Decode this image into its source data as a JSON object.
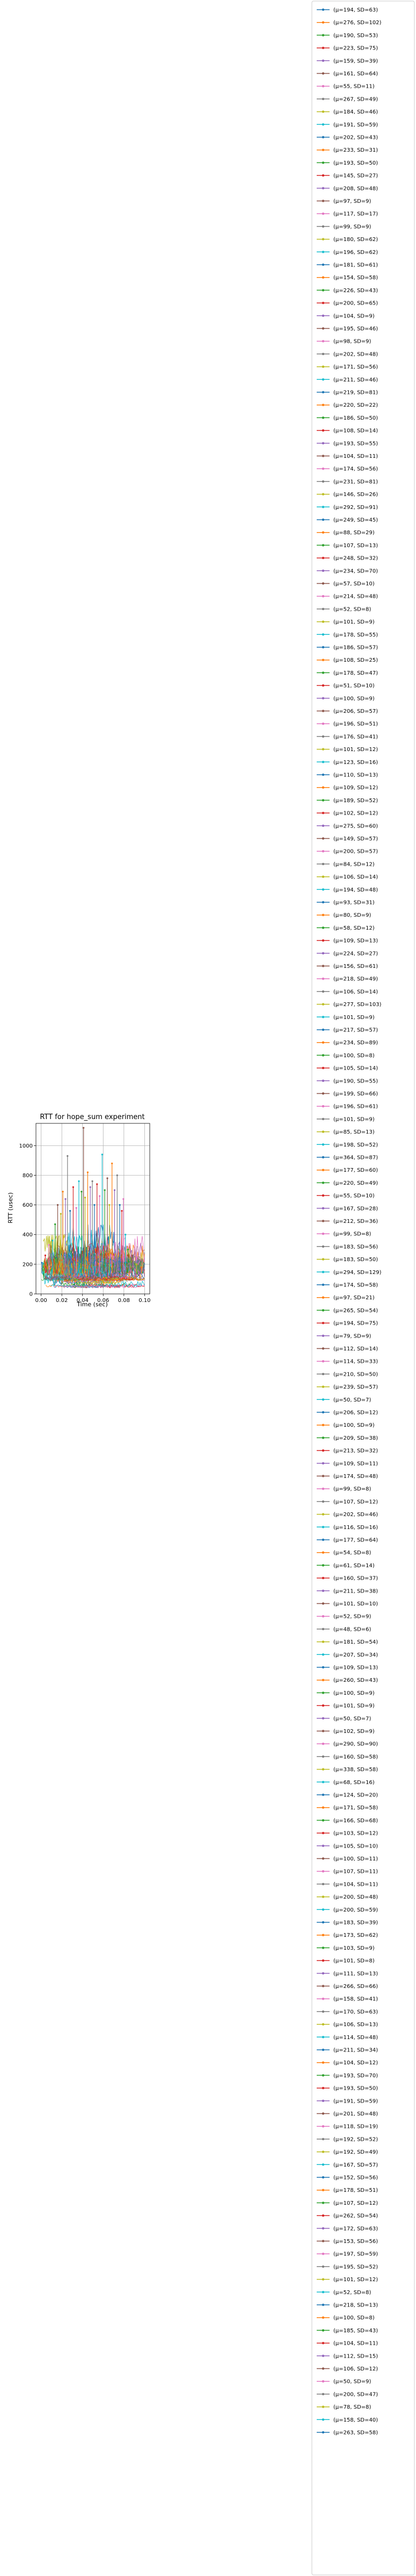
{
  "chart_data": {
    "type": "line",
    "title": "RTT for hope_sum experiment",
    "xlabel": "Time (sec)",
    "ylabel": "RTT (usec)",
    "xlim": [
      -0.005,
      0.105
    ],
    "ylim": [
      0,
      1150
    ],
    "xticks": [
      "0.00",
      "0.02",
      "0.04",
      "0.06",
      "0.08",
      "0.10"
    ],
    "yticks": [
      "0",
      "200",
      "400",
      "600",
      "800",
      "1000"
    ],
    "grid": true,
    "legend_position": "right, outside plot",
    "colors": [
      "#1f77b4",
      "#ff7f0e",
      "#2ca02c",
      "#d62728",
      "#9467bd",
      "#8c564b",
      "#e377c2",
      "#7f7f7f",
      "#bcbd22",
      "#17becf"
    ],
    "series": [
      {
        "name": "(μ=194, SD=63)"
      },
      {
        "name": "(μ=276, SD=102)"
      },
      {
        "name": "(μ=190, SD=53)"
      },
      {
        "name": "(μ=223, SD=75)"
      },
      {
        "name": "(μ=159, SD=39)"
      },
      {
        "name": "(μ=161, SD=64)"
      },
      {
        "name": "(μ=55, SD=11)"
      },
      {
        "name": "(μ=267, SD=49)"
      },
      {
        "name": "(μ=184, SD=46)"
      },
      {
        "name": "(μ=191, SD=59)"
      },
      {
        "name": "(μ=202, SD=43)"
      },
      {
        "name": "(μ=233, SD=31)"
      },
      {
        "name": "(μ=193, SD=50)"
      },
      {
        "name": "(μ=145, SD=27)"
      },
      {
        "name": "(μ=208, SD=48)"
      },
      {
        "name": "(μ=97, SD=9)"
      },
      {
        "name": "(μ=117, SD=17)"
      },
      {
        "name": "(μ=99, SD=9)"
      },
      {
        "name": "(μ=180, SD=62)"
      },
      {
        "name": "(μ=196, SD=62)"
      },
      {
        "name": "(μ=181, SD=61)"
      },
      {
        "name": "(μ=154, SD=58)"
      },
      {
        "name": "(μ=226, SD=43)"
      },
      {
        "name": "(μ=200, SD=65)"
      },
      {
        "name": "(μ=104, SD=9)"
      },
      {
        "name": "(μ=195, SD=46)"
      },
      {
        "name": "(μ=98, SD=9)"
      },
      {
        "name": "(μ=202, SD=48)"
      },
      {
        "name": "(μ=171, SD=56)"
      },
      {
        "name": "(μ=211, SD=46)"
      },
      {
        "name": "(μ=219, SD=81)"
      },
      {
        "name": "(μ=220, SD=22)"
      },
      {
        "name": "(μ=186, SD=50)"
      },
      {
        "name": "(μ=108, SD=14)"
      },
      {
        "name": "(μ=193, SD=55)"
      },
      {
        "name": "(μ=104, SD=11)"
      },
      {
        "name": "(μ=174, SD=56)"
      },
      {
        "name": "(μ=231, SD=81)"
      },
      {
        "name": "(μ=146, SD=26)"
      },
      {
        "name": "(μ=292, SD=91)"
      },
      {
        "name": "(μ=249, SD=45)"
      },
      {
        "name": "(μ=88, SD=29)"
      },
      {
        "name": "(μ=107, SD=13)"
      },
      {
        "name": "(μ=248, SD=32)"
      },
      {
        "name": "(μ=234, SD=70)"
      },
      {
        "name": "(μ=57, SD=10)"
      },
      {
        "name": "(μ=214, SD=48)"
      },
      {
        "name": "(μ=52, SD=8)"
      },
      {
        "name": "(μ=101, SD=9)"
      },
      {
        "name": "(μ=178, SD=55)"
      },
      {
        "name": "(μ=186, SD=57)"
      },
      {
        "name": "(μ=108, SD=25)"
      },
      {
        "name": "(μ=178, SD=47)"
      },
      {
        "name": "(μ=51, SD=10)"
      },
      {
        "name": "(μ=100, SD=9)"
      },
      {
        "name": "(μ=206, SD=57)"
      },
      {
        "name": "(μ=196, SD=51)"
      },
      {
        "name": "(μ=176, SD=41)"
      },
      {
        "name": "(μ=101, SD=12)"
      },
      {
        "name": "(μ=123, SD=16)"
      },
      {
        "name": "(μ=110, SD=13)"
      },
      {
        "name": "(μ=109, SD=12)"
      },
      {
        "name": "(μ=189, SD=52)"
      },
      {
        "name": "(μ=102, SD=12)"
      },
      {
        "name": "(μ=275, SD=60)"
      },
      {
        "name": "(μ=149, SD=57)"
      },
      {
        "name": "(μ=200, SD=57)"
      },
      {
        "name": "(μ=84, SD=12)"
      },
      {
        "name": "(μ=106, SD=14)"
      },
      {
        "name": "(μ=194, SD=48)"
      },
      {
        "name": "(μ=93, SD=31)"
      },
      {
        "name": "(μ=80, SD=9)"
      },
      {
        "name": "(μ=58, SD=12)"
      },
      {
        "name": "(μ=109, SD=13)"
      },
      {
        "name": "(μ=224, SD=27)"
      },
      {
        "name": "(μ=156, SD=61)"
      },
      {
        "name": "(μ=218, SD=49)"
      },
      {
        "name": "(μ=106, SD=14)"
      },
      {
        "name": "(μ=277, SD=103)"
      },
      {
        "name": "(μ=101, SD=9)"
      },
      {
        "name": "(μ=217, SD=57)"
      },
      {
        "name": "(μ=234, SD=89)"
      },
      {
        "name": "(μ=100, SD=8)"
      },
      {
        "name": "(μ=105, SD=14)"
      },
      {
        "name": "(μ=190, SD=55)"
      },
      {
        "name": "(μ=199, SD=66)"
      },
      {
        "name": "(μ=196, SD=61)"
      },
      {
        "name": "(μ=101, SD=9)"
      },
      {
        "name": "(μ=85, SD=13)"
      },
      {
        "name": "(μ=198, SD=52)"
      },
      {
        "name": "(μ=364, SD=87)"
      },
      {
        "name": "(μ=177, SD=60)"
      },
      {
        "name": "(μ=220, SD=49)"
      },
      {
        "name": "(μ=55, SD=10)"
      },
      {
        "name": "(μ=167, SD=28)"
      },
      {
        "name": "(μ=212, SD=36)"
      },
      {
        "name": "(μ=99, SD=8)"
      },
      {
        "name": "(μ=183, SD=56)"
      },
      {
        "name": "(μ=183, SD=50)"
      },
      {
        "name": "(μ=294, SD=129)"
      },
      {
        "name": "(μ=174, SD=58)"
      },
      {
        "name": "(μ=97, SD=21)"
      },
      {
        "name": "(μ=265, SD=54)"
      },
      {
        "name": "(μ=194, SD=75)"
      },
      {
        "name": "(μ=79, SD=9)"
      },
      {
        "name": "(μ=112, SD=14)"
      },
      {
        "name": "(μ=114, SD=33)"
      },
      {
        "name": "(μ=210, SD=50)"
      },
      {
        "name": "(μ=239, SD=57)"
      },
      {
        "name": "(μ=50, SD=7)"
      },
      {
        "name": "(μ=206, SD=12)"
      },
      {
        "name": "(μ=100, SD=9)"
      },
      {
        "name": "(μ=209, SD=38)"
      },
      {
        "name": "(μ=213, SD=32)"
      },
      {
        "name": "(μ=109, SD=11)"
      },
      {
        "name": "(μ=174, SD=48)"
      },
      {
        "name": "(μ=99, SD=8)"
      },
      {
        "name": "(μ=107, SD=12)"
      },
      {
        "name": "(μ=202, SD=46)"
      },
      {
        "name": "(μ=116, SD=16)"
      },
      {
        "name": "(μ=177, SD=64)"
      },
      {
        "name": "(μ=54, SD=8)"
      },
      {
        "name": "(μ=61, SD=14)"
      },
      {
        "name": "(μ=160, SD=37)"
      },
      {
        "name": "(μ=211, SD=38)"
      },
      {
        "name": "(μ=101, SD=10)"
      },
      {
        "name": "(μ=52, SD=9)"
      },
      {
        "name": "(μ=48, SD=6)"
      },
      {
        "name": "(μ=181, SD=54)"
      },
      {
        "name": "(μ=207, SD=34)"
      },
      {
        "name": "(μ=109, SD=13)"
      },
      {
        "name": "(μ=260, SD=43)"
      },
      {
        "name": "(μ=100, SD=9)"
      },
      {
        "name": "(μ=101, SD=9)"
      },
      {
        "name": "(μ=50, SD=7)"
      },
      {
        "name": "(μ=102, SD=9)"
      },
      {
        "name": "(μ=290, SD=90)"
      },
      {
        "name": "(μ=160, SD=58)"
      },
      {
        "name": "(μ=338, SD=58)"
      },
      {
        "name": "(μ=68, SD=16)"
      },
      {
        "name": "(μ=124, SD=20)"
      },
      {
        "name": "(μ=171, SD=58)"
      },
      {
        "name": "(μ=166, SD=68)"
      },
      {
        "name": "(μ=103, SD=12)"
      },
      {
        "name": "(μ=105, SD=10)"
      },
      {
        "name": "(μ=100, SD=11)"
      },
      {
        "name": "(μ=107, SD=11)"
      },
      {
        "name": "(μ=104, SD=11)"
      },
      {
        "name": "(μ=200, SD=48)"
      },
      {
        "name": "(μ=200, SD=59)"
      },
      {
        "name": "(μ=183, SD=39)"
      },
      {
        "name": "(μ=173, SD=62)"
      },
      {
        "name": "(μ=103, SD=9)"
      },
      {
        "name": "(μ=101, SD=8)"
      },
      {
        "name": "(μ=111, SD=13)"
      },
      {
        "name": "(μ=266, SD=66)"
      },
      {
        "name": "(μ=158, SD=41)"
      },
      {
        "name": "(μ=170, SD=63)"
      },
      {
        "name": "(μ=106, SD=13)"
      },
      {
        "name": "(μ=114, SD=48)"
      },
      {
        "name": "(μ=211, SD=34)"
      },
      {
        "name": "(μ=104, SD=12)"
      },
      {
        "name": "(μ=193, SD=70)"
      },
      {
        "name": "(μ=193, SD=50)"
      },
      {
        "name": "(μ=191, SD=59)"
      },
      {
        "name": "(μ=201, SD=48)"
      },
      {
        "name": "(μ=118, SD=19)"
      },
      {
        "name": "(μ=192, SD=52)"
      },
      {
        "name": "(μ=192, SD=49)"
      },
      {
        "name": "(μ=167, SD=57)"
      },
      {
        "name": "(μ=152, SD=56)"
      },
      {
        "name": "(μ=178, SD=51)"
      },
      {
        "name": "(μ=107, SD=12)"
      },
      {
        "name": "(μ=262, SD=54)"
      },
      {
        "name": "(μ=172, SD=63)"
      },
      {
        "name": "(μ=153, SD=56)"
      },
      {
        "name": "(μ=197, SD=59)"
      },
      {
        "name": "(μ=195, SD=52)"
      },
      {
        "name": "(μ=101, SD=12)"
      },
      {
        "name": "(μ=52, SD=8)"
      },
      {
        "name": "(μ=218, SD=13)"
      },
      {
        "name": "(μ=100, SD=8)"
      },
      {
        "name": "(μ=185, SD=43)"
      },
      {
        "name": "(μ=104, SD=11)"
      },
      {
        "name": "(μ=112, SD=15)"
      },
      {
        "name": "(μ=106, SD=12)"
      },
      {
        "name": "(μ=50, SD=9)"
      },
      {
        "name": "(μ=200, SD=47)"
      },
      {
        "name": "(μ=78, SD=8)"
      },
      {
        "name": "(μ=158, SD=40)"
      },
      {
        "name": "(μ=263, SD=58)"
      }
    ],
    "peaks": [
      {
        "x": 0.0008,
        "y": 210
      },
      {
        "x": 0.004,
        "y": 260
      },
      {
        "x": 0.0075,
        "y": 330
      },
      {
        "x": 0.011,
        "y": 360
      },
      {
        "x": 0.0135,
        "y": 470
      },
      {
        "x": 0.016,
        "y": 600
      },
      {
        "x": 0.019,
        "y": 540
      },
      {
        "x": 0.021,
        "y": 690
      },
      {
        "x": 0.0235,
        "y": 640
      },
      {
        "x": 0.0255,
        "y": 930
      },
      {
        "x": 0.028,
        "y": 560
      },
      {
        "x": 0.031,
        "y": 720
      },
      {
        "x": 0.034,
        "y": 580
      },
      {
        "x": 0.0365,
        "y": 760
      },
      {
        "x": 0.039,
        "y": 690
      },
      {
        "x": 0.041,
        "y": 1120
      },
      {
        "x": 0.0425,
        "y": 650
      },
      {
        "x": 0.045,
        "y": 820
      },
      {
        "x": 0.0475,
        "y": 720
      },
      {
        "x": 0.0495,
        "y": 760
      },
      {
        "x": 0.0515,
        "y": 600
      },
      {
        "x": 0.054,
        "y": 740
      },
      {
        "x": 0.0565,
        "y": 660
      },
      {
        "x": 0.059,
        "y": 940
      },
      {
        "x": 0.0615,
        "y": 700
      },
      {
        "x": 0.064,
        "y": 780
      },
      {
        "x": 0.066,
        "y": 600
      },
      {
        "x": 0.0685,
        "y": 880
      },
      {
        "x": 0.071,
        "y": 700
      },
      {
        "x": 0.0735,
        "y": 800
      },
      {
        "x": 0.076,
        "y": 600
      },
      {
        "x": 0.078,
        "y": 560
      },
      {
        "x": 0.0795,
        "y": 640
      },
      {
        "x": 0.0815,
        "y": 400
      },
      {
        "x": 0.084,
        "y": 300
      },
      {
        "x": 0.088,
        "y": 260
      },
      {
        "x": 0.092,
        "y": 200
      },
      {
        "x": 0.097,
        "y": 180
      }
    ]
  }
}
